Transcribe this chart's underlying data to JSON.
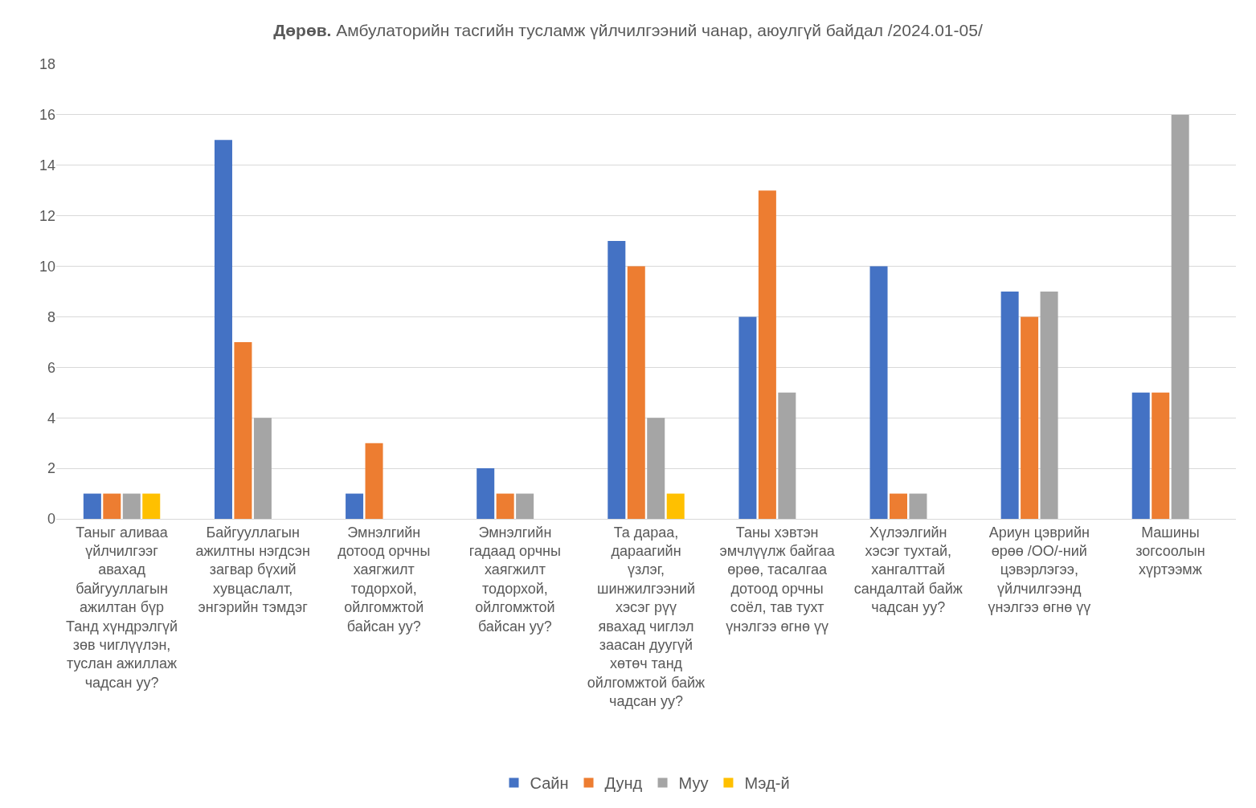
{
  "chart_data": {
    "type": "bar",
    "title": "Дөрөв. Амбулаторийн тасгийн тусламж үйлчилгээний чанар, аюулгүй байдал /2024.01-05/",
    "categories": [
      "Таныг аливаа үйлчилгээг авахад байгууллагын ажилтан бүр Танд хүндрэлгүй зөв чиглүүлэн, туслан ажиллаж чадсан уу?",
      "Байгууллагын ажилтны нэгдсэн загвар бүхий хувцаслалт, энгэрийн тэмдэг",
      "Эмнэлгийн дотоод орчны хаягжилт тодорхой, ойлгомжтой байсан уу?",
      "Эмнэлгийн гадаад орчны хаягжилт тодорхой, ойлгомжтой байсан уу?",
      "Та дараа, дараагийн үзлэг, шинжилгээний хэсэг рүү явахад чиглэл заасан дуугүй хөтөч танд ойлгомжтой байж чадсан уу?",
      "Таны хэвтэн эмчлүүлж байгаа өрөө, тасалгаа дотоод орчны соёл, тав тухт үнэлгээ өгнө үү",
      "Хүлээлгийн хэсэг тухтай, хангалттай сандалтай байж чадсан уу?",
      "Ариун цэврийн өрөө /ОО/-ний цэвэрлэгээ, үйлчилгээнд үнэлгээ өгнө үү",
      "Машины зогсоолын хүртээмж"
    ],
    "series": [
      {
        "name": "Сайн",
        "color": "#4472c4",
        "values": [
          1,
          15,
          1,
          2,
          11,
          8,
          10,
          9,
          5
        ]
      },
      {
        "name": "Дунд",
        "color": "#ed7d31",
        "values": [
          1,
          7,
          3,
          1,
          10,
          13,
          1,
          8,
          5
        ]
      },
      {
        "name": "Муу",
        "color": "#a5a5a5",
        "values": [
          1,
          4,
          null,
          1,
          4,
          5,
          1,
          9,
          16
        ]
      },
      {
        "name": "Мэд-й",
        "color": "#ffc000",
        "values": [
          1,
          null,
          null,
          null,
          1,
          null,
          null,
          null,
          null
        ]
      }
    ],
    "ylim": [
      0,
      18
    ],
    "yticks": [
      0,
      2,
      4,
      6,
      8,
      10,
      12,
      14,
      16,
      18
    ],
    "grid": "y",
    "legend": "bottom"
  }
}
